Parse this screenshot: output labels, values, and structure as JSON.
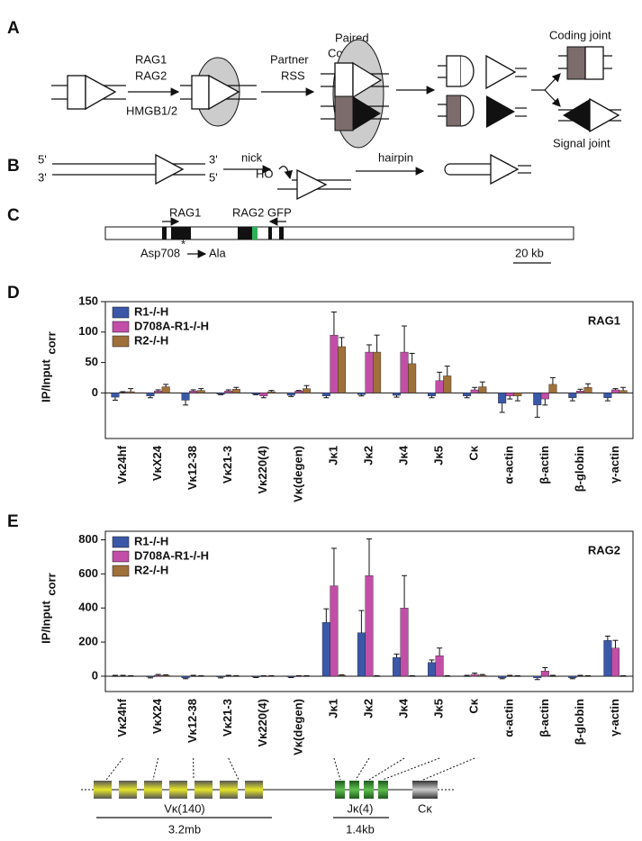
{
  "panel_labels": [
    "A",
    "B",
    "C",
    "D",
    "E"
  ],
  "panel_a": {
    "factors": [
      "RAG1",
      "RAG2"
    ],
    "cofactor": "HMGB1/2",
    "partner": [
      "Partner",
      "RSS"
    ],
    "paired": [
      "Paired",
      "Complex"
    ],
    "coding_joint": "Coding joint",
    "signal_joint": "Signal joint"
  },
  "panel_b": {
    "ends": [
      "5'",
      "3'",
      "3'",
      "5'"
    ],
    "nick": "nick",
    "ho": "HO",
    "hairpin": "hairpin"
  },
  "panel_c": {
    "labels": [
      "RAG1",
      "RAG2 GFP"
    ],
    "star": "*",
    "mutation": [
      "Asp708",
      "Ala"
    ],
    "scale": "20 kb"
  },
  "chart_data": [
    {
      "type": "bar",
      "title": "RAG1",
      "y_label": "IP/Input",
      "y_label_sub": "corr",
      "legend": "upper left",
      "categories": [
        "Vκ24hf",
        "VκX24",
        "Vκ12-38",
        "Vκ21-3",
        "Vκ220(4)",
        "Vκ(degen)",
        "Jκ1",
        "Jκ2",
        "Jκ4",
        "Jκ5",
        "Cκ",
        "α-actin",
        "β-actin",
        "β-globin",
        "γ-actin"
      ],
      "series": [
        {
          "name": "R1-/-H",
          "color": "#3b57a8",
          "values": [
            -7,
            -5,
            -12,
            -2,
            -2,
            -4,
            -5,
            -3,
            -4,
            -5,
            -5,
            -17,
            -20,
            -8,
            -8
          ],
          "errors": [
            5,
            3,
            8,
            1,
            1,
            2,
            3,
            2,
            3,
            3,
            3,
            15,
            20,
            5,
            5
          ]
        },
        {
          "name": "D708A-R1-/-H",
          "color": "#c24ea8",
          "values": [
            1,
            3,
            3,
            3,
            -5,
            3,
            95,
            67,
            67,
            20,
            5,
            -5,
            -10,
            3,
            5
          ],
          "errors": [
            1,
            2,
            2,
            2,
            3,
            1,
            38,
            12,
            43,
            14,
            4,
            5,
            10,
            3,
            2
          ]
        },
        {
          "name": "R2-/-H",
          "color": "#a0703a",
          "values": [
            2,
            10,
            4,
            6,
            2,
            7,
            76,
            67,
            48,
            28,
            10,
            -5,
            14,
            9,
            4
          ],
          "errors": [
            5,
            4,
            3,
            3,
            2,
            5,
            15,
            28,
            17,
            16,
            8,
            8,
            11,
            6,
            5
          ]
        }
      ],
      "ylim": [
        -75,
        150
      ],
      "yticks": [
        0,
        50,
        100,
        150
      ]
    },
    {
      "type": "bar",
      "title": "RAG2",
      "y_label": "IP/Input",
      "y_label_sub": "corr",
      "legend": "upper left",
      "categories": [
        "Vκ24hf",
        "VκX24",
        "Vκ12-38",
        "Vκ21-3",
        "Vκ220(4)",
        "Vκ(degen)",
        "Jκ1",
        "Jκ2",
        "Jκ4",
        "Jκ5",
        "Cκ",
        "α-actin",
        "β-actin",
        "β-globin",
        "γ-actin"
      ],
      "series": [
        {
          "name": "R1-/-H",
          "color": "#3b57a8",
          "values": [
            0,
            -5,
            -10,
            -5,
            -5,
            -5,
            315,
            255,
            110,
            80,
            0,
            -10,
            -10,
            -10,
            210
          ],
          "errors": [
            5,
            5,
            5,
            5,
            3,
            3,
            80,
            130,
            20,
            15,
            5,
            5,
            10,
            5,
            25
          ]
        },
        {
          "name": "D708A-R1-/-H",
          "color": "#c24ea8",
          "values": [
            0,
            5,
            0,
            0,
            0,
            0,
            530,
            590,
            400,
            120,
            10,
            0,
            30,
            0,
            165
          ],
          "errors": [
            5,
            5,
            5,
            5,
            3,
            3,
            220,
            215,
            190,
            45,
            8,
            5,
            20,
            5,
            45
          ]
        },
        {
          "name": "R2-/-H",
          "color": "#a0703a",
          "values": [
            0,
            5,
            0,
            0,
            0,
            0,
            5,
            0,
            0,
            0,
            5,
            0,
            0,
            0,
            0
          ],
          "errors": [
            3,
            3,
            3,
            3,
            3,
            3,
            3,
            3,
            3,
            3,
            5,
            3,
            5,
            3,
            3
          ]
        }
      ],
      "ylim": [
        -90,
        850
      ],
      "yticks": [
        0,
        200,
        400,
        600,
        800
      ]
    }
  ],
  "locus": {
    "segments": [
      "Vκ(140)",
      "Jκ(4)",
      "Cκ"
    ],
    "sizes": [
      "3.2mb",
      "1.4kb"
    ]
  }
}
